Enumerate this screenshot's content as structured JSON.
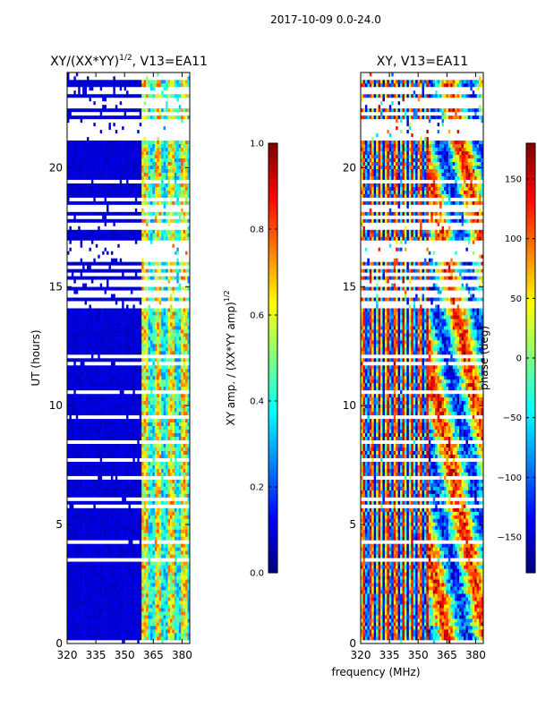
{
  "suptitle": "2017-10-09 0.0-24.0",
  "xlabel": "frequency (MHz)",
  "colors": {
    "jet": [
      "#00007f",
      "#0000ff",
      "#007fff",
      "#00ffff",
      "#7fff7f",
      "#ffff00",
      "#ff7f00",
      "#ff0000",
      "#7f0000"
    ],
    "gap": "#ffffff",
    "axes": "#000000"
  },
  "chart_data": [
    {
      "type": "heatmap",
      "title": "XY/(XX*YY)",
      "title_exponent": "1/2",
      "title_suffix": ", V13=EA11",
      "xlabel": "",
      "ylabel": "UT (hours)",
      "xlim": [
        320,
        384
      ],
      "ylim": [
        0,
        24
      ],
      "xticks": [
        "320",
        "335",
        "350",
        "365",
        "380"
      ],
      "yticks": [
        "0",
        "5",
        "10",
        "15",
        "20"
      ],
      "bright_channels_mhz": [
        361,
        367,
        374,
        381
      ],
      "colorbar": {
        "label": "XY amp. / (XX*YY amp)",
        "label_exponent": "1/2",
        "range": [
          0.0,
          1.0
        ],
        "ticks": [
          "0.0",
          "0.2",
          "0.4",
          "0.6",
          "0.8",
          "1.0"
        ]
      }
    },
    {
      "type": "heatmap",
      "title": "XY, V13=EA11",
      "xlabel": "frequency (MHz)",
      "ylabel": "",
      "xlim": [
        320,
        384
      ],
      "ylim": [
        0,
        24
      ],
      "xticks": [
        "320",
        "335",
        "350",
        "365",
        "380"
      ],
      "yticks": [
        "0",
        "5",
        "10",
        "15",
        "20"
      ],
      "colorbar": {
        "label": "phase (deg)",
        "range": [
          -180,
          180
        ],
        "ticks": [
          "-150",
          "-100",
          "-50",
          "0",
          "50",
          "100",
          "150"
        ]
      }
    }
  ]
}
